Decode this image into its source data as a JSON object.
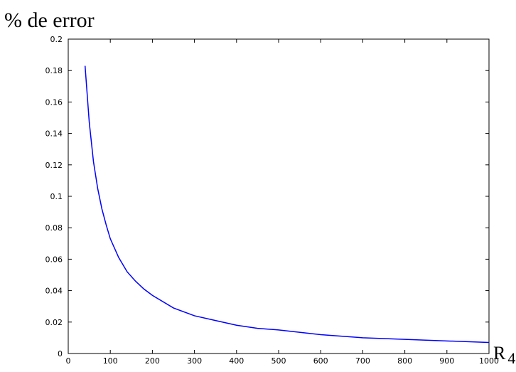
{
  "chart_data": {
    "type": "line",
    "ylabel": "% de error",
    "xlabel": "R",
    "xlabel_subscript": "4",
    "xlim": [
      0,
      1000
    ],
    "ylim": [
      0,
      0.2
    ],
    "xticks": [
      0,
      100,
      200,
      300,
      400,
      500,
      600,
      700,
      800,
      900,
      1000
    ],
    "yticks": [
      0,
      0.02,
      0.04,
      0.06,
      0.08,
      0.1,
      0.12,
      0.14,
      0.16,
      0.18,
      0.2
    ],
    "grid": false,
    "line_color": "#0000ff",
    "series": [
      {
        "x": [
          40,
          50,
          60,
          70,
          80,
          90,
          100,
          120,
          140,
          160,
          180,
          200,
          250,
          300,
          350,
          400,
          450,
          500,
          600,
          700,
          800,
          900,
          1000
        ],
        "values": [
          0.183,
          0.147,
          0.122,
          0.105,
          0.092,
          0.082,
          0.073,
          0.061,
          0.052,
          0.046,
          0.041,
          0.037,
          0.029,
          0.024,
          0.021,
          0.018,
          0.016,
          0.015,
          0.012,
          0.01,
          0.009,
          0.008,
          0.007
        ]
      }
    ]
  }
}
